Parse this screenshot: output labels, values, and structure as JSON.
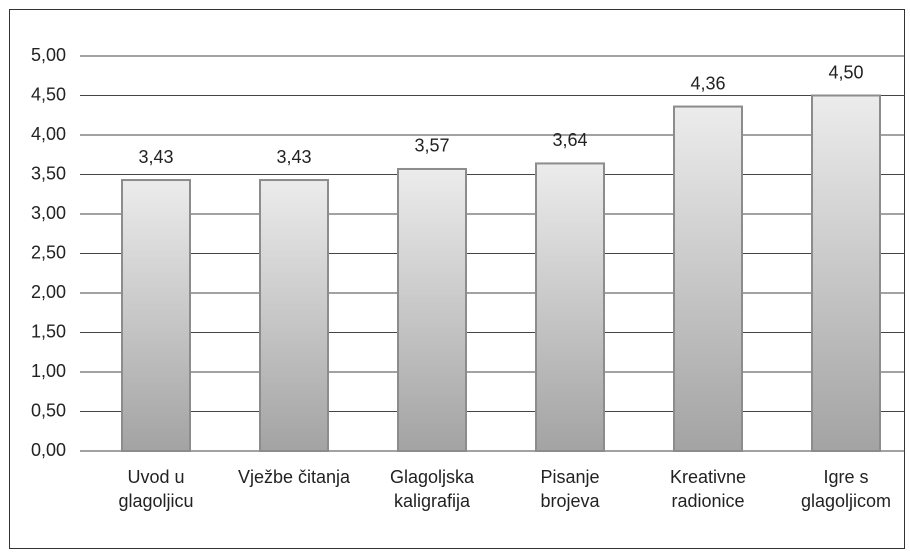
{
  "chart_data": {
    "type": "bar",
    "categories": [
      "Uvod u glagoljicu",
      "Vježbe čitanja",
      "Glagoljska kaligrafija",
      "Pisanje brojeva",
      "Kreativne radionice",
      "Igre s glagoljicom"
    ],
    "values": [
      3.43,
      3.43,
      3.57,
      3.64,
      4.36,
      4.5
    ],
    "value_labels": [
      "3,43",
      "3,43",
      "3,57",
      "3,64",
      "4,36",
      "4,50"
    ],
    "color": "#b8b8b8",
    "ylim": [
      0,
      5
    ],
    "yticks": [
      {
        "value": 0,
        "label": "0,00"
      },
      {
        "value": 0.5,
        "label": "0,50"
      },
      {
        "value": 1,
        "label": "1,00"
      },
      {
        "value": 1.5,
        "label": "1,50"
      },
      {
        "value": 2,
        "label": "2,00"
      },
      {
        "value": 2.5,
        "label": "2,50"
      },
      {
        "value": 3,
        "label": "3,00"
      },
      {
        "value": 3.5,
        "label": "3,50"
      },
      {
        "value": 4,
        "label": "4,00"
      },
      {
        "value": 4.5,
        "label": "4,50"
      },
      {
        "value": 5,
        "label": "5,00"
      }
    ],
    "grid": true
  }
}
